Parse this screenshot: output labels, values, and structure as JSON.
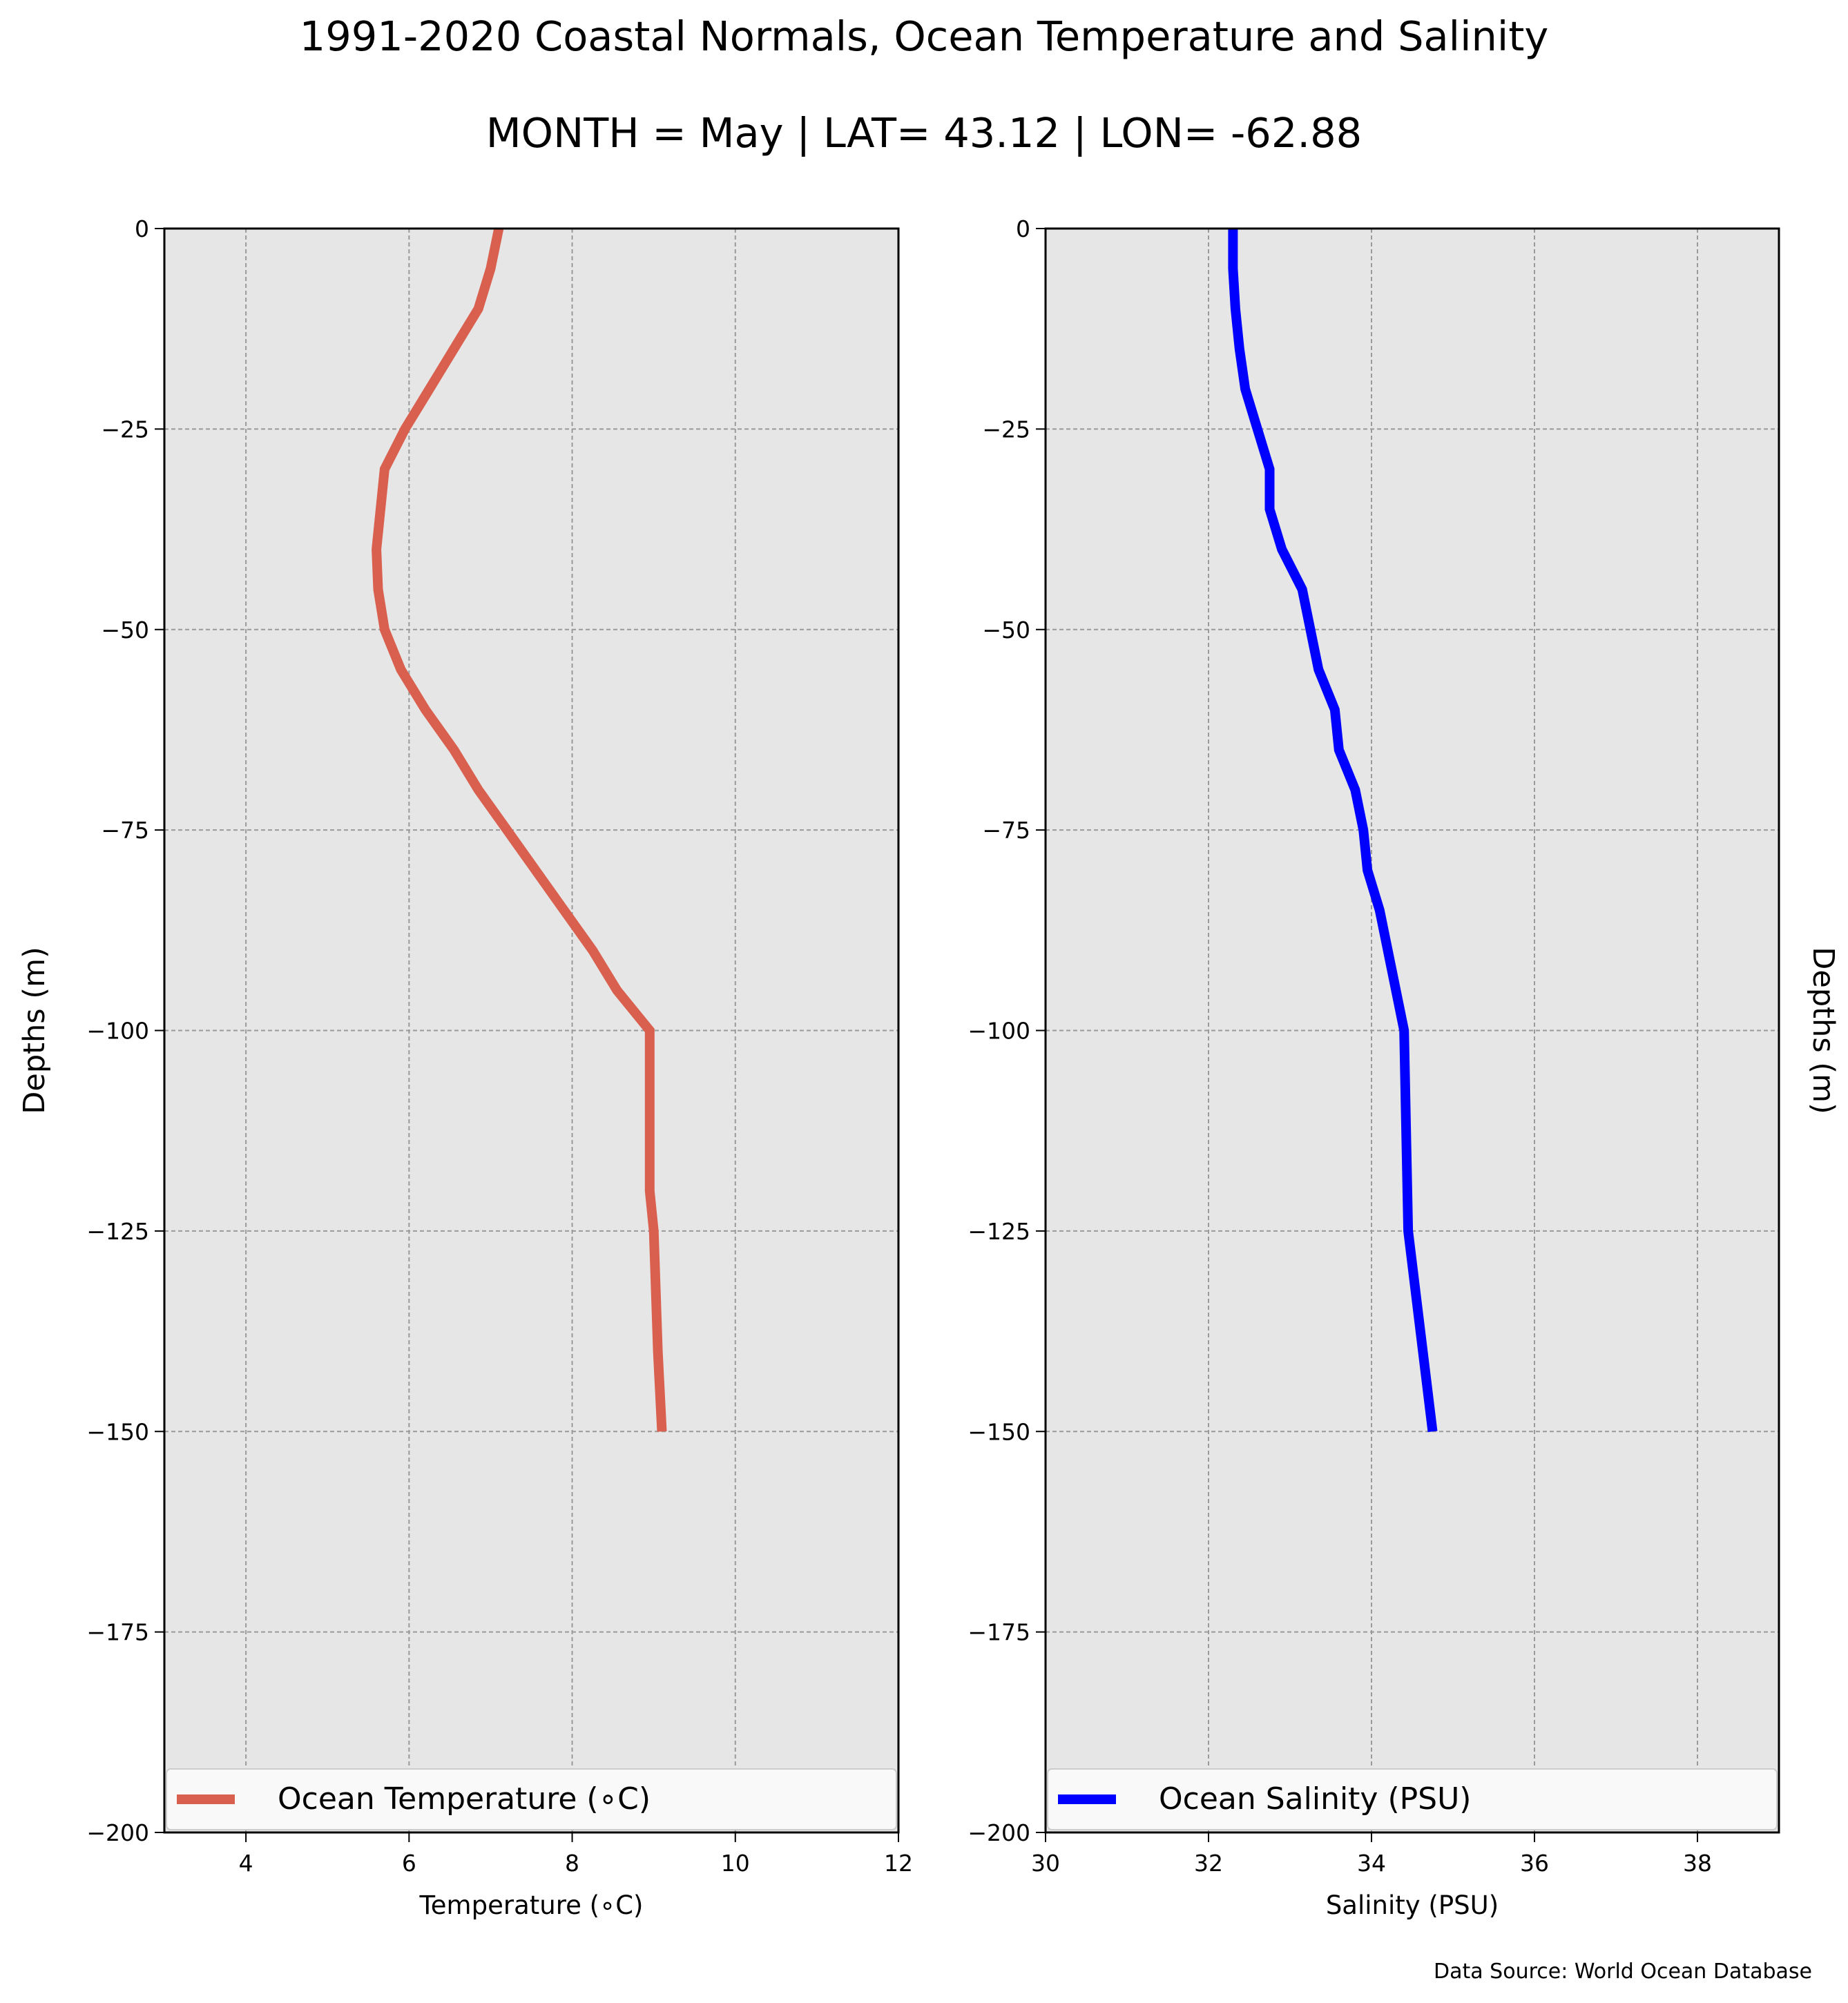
{
  "title": "1991-2020 Coastal Normals, Ocean Temperature and Salinity",
  "subtitle": "MONTH = May | LAT= 43.12 | LON= -62.88",
  "source": "Data Source: World Ocean Database",
  "chart_data": [
    {
      "type": "line",
      "xlabel": "Temperature (∘C)",
      "ylabel": "Depths (m)",
      "ylabel_position": "left",
      "xlim": [
        3,
        12
      ],
      "ylim": [
        -200,
        0
      ],
      "xticks": [
        "4",
        "6",
        "8",
        "10",
        "12"
      ],
      "yticks": [
        "0",
        "−25",
        "−50",
        "−75",
        "−100",
        "−125",
        "−150",
        "−175",
        "−200"
      ],
      "grid": true,
      "legend_position": "bottom",
      "color": "#d9604f",
      "series": [
        {
          "name": "Ocean Temperature (∘C)",
          "x": [
            7.1,
            7.0,
            6.85,
            6.55,
            6.25,
            5.95,
            5.7,
            5.65,
            5.6,
            5.62,
            5.7,
            5.9,
            6.2,
            6.55,
            6.85,
            7.2,
            7.55,
            7.9,
            8.25,
            8.55,
            8.95,
            8.95,
            8.95,
            8.95,
            8.95,
            9.0,
            9.05,
            9.1
          ],
          "y": [
            0,
            -5,
            -10,
            -15,
            -20,
            -25,
            -30,
            -35,
            -40,
            -45,
            -50,
            -55,
            -60,
            -65,
            -70,
            -75,
            -80,
            -85,
            -90,
            -95,
            -100,
            -105,
            -110,
            -115,
            -120,
            -125,
            -140,
            -150
          ]
        }
      ]
    },
    {
      "type": "line",
      "xlabel": "Salinity (PSU)",
      "ylabel": "Depths (m)",
      "ylabel_position": "right",
      "xlim": [
        30,
        39
      ],
      "ylim": [
        -200,
        0
      ],
      "xticks": [
        "30",
        "32",
        "34",
        "36",
        "38"
      ],
      "yticks": [
        "0",
        "−25",
        "−50",
        "−75",
        "−100",
        "−125",
        "−150",
        "−175",
        "−200"
      ],
      "grid": true,
      "legend_position": "bottom",
      "color": "#0000ff",
      "series": [
        {
          "name": "Ocean Salinity (PSU)",
          "x": [
            32.3,
            32.3,
            32.33,
            32.38,
            32.45,
            32.6,
            32.75,
            32.75,
            32.9,
            33.15,
            33.25,
            33.35,
            33.55,
            33.6,
            33.8,
            33.9,
            33.95,
            34.1,
            34.2,
            34.3,
            34.4,
            34.45,
            34.75
          ],
          "y": [
            0,
            -5,
            -10,
            -15,
            -20,
            -25,
            -30,
            -35,
            -40,
            -45,
            -50,
            -55,
            -60,
            -65,
            -70,
            -75,
            -80,
            -85,
            -90,
            -95,
            -100,
            -125,
            -150
          ]
        }
      ]
    }
  ]
}
